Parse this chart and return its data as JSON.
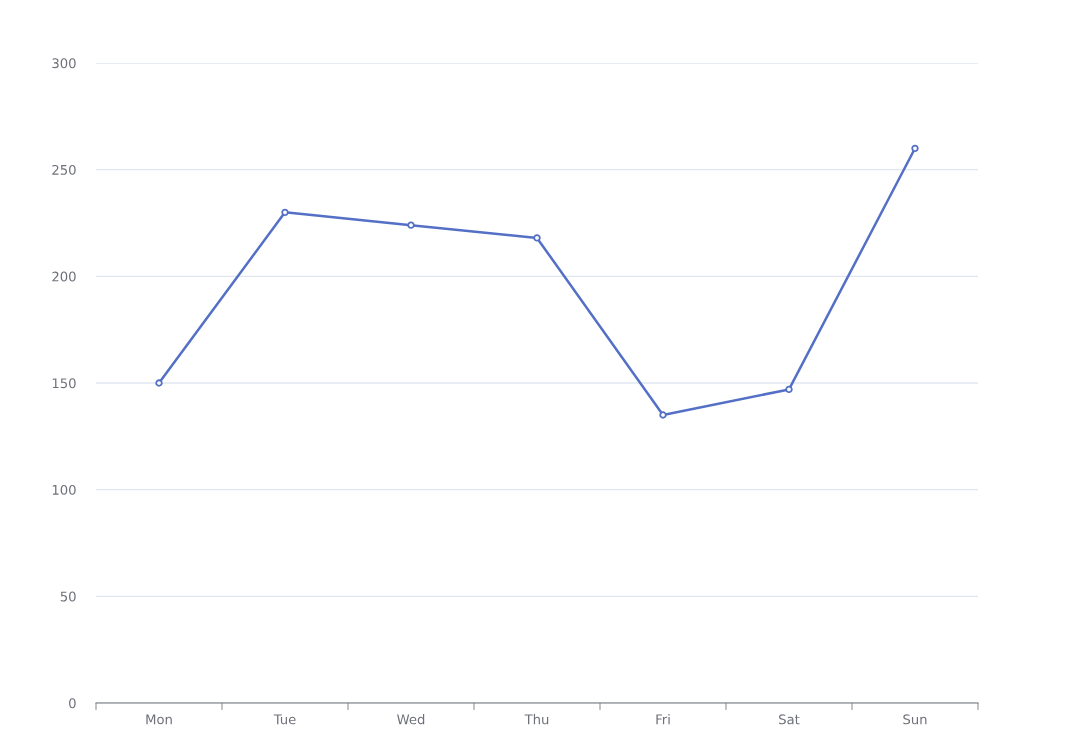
{
  "chart_data": {
    "type": "line",
    "categories": [
      "Mon",
      "Tue",
      "Wed",
      "Thu",
      "Fri",
      "Sat",
      "Sun"
    ],
    "series": [
      {
        "color": "#5470c6",
        "values": [
          150,
          230,
          224,
          218,
          135,
          147,
          260
        ]
      }
    ],
    "ylim": [
      0,
      300
    ],
    "yticks": [
      0,
      50,
      100,
      150,
      200,
      250,
      300
    ],
    "grid": "y",
    "marker": "circle",
    "line_style": "solid"
  }
}
